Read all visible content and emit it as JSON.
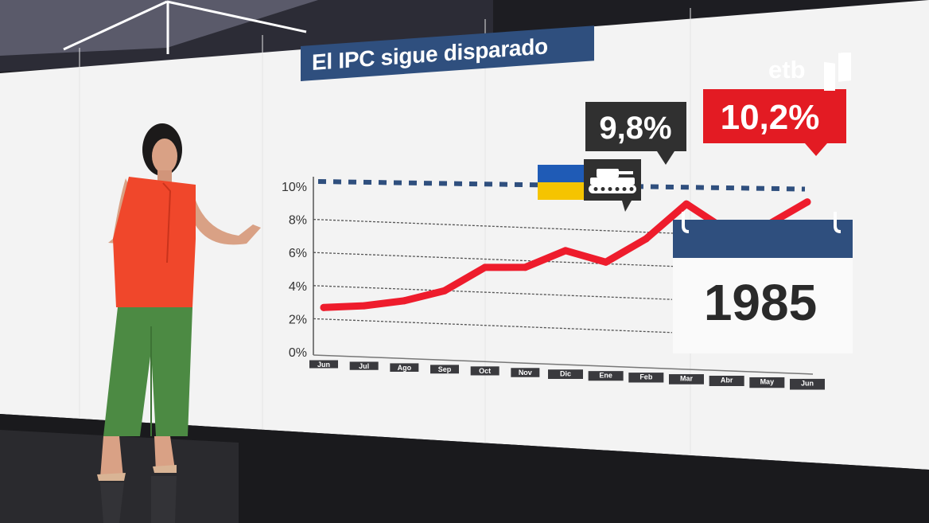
{
  "title": "El IPC sigue disparado",
  "logo": "etb",
  "calendar_year": "1985",
  "callouts": {
    "peak_label": "9,8%",
    "latest_label": "10,2%"
  },
  "icons": [
    "ukraine-flag-icon",
    "tank-icon",
    "calendar-icon"
  ],
  "colors": {
    "series": "#ee1c2c",
    "latest_callout": "#e31b23",
    "peak_callout": "#303030",
    "title_bg": "#2f4f7e",
    "calendar_header": "#2f4f7e",
    "reference_line": "#2f4f7e",
    "flag_blue": "#1f5bb6",
    "flag_yellow": "#f5c400"
  },
  "chart_data": {
    "type": "line",
    "title": "El IPC sigue disparado",
    "categories": [
      "Jun",
      "Jul",
      "Ago",
      "Sep",
      "Oct",
      "Nov",
      "Dic",
      "Ene",
      "Feb",
      "Mar",
      "Abr",
      "May",
      "Jun"
    ],
    "series": [
      {
        "values": [
          2.7,
          2.9,
          3.3,
          4.0,
          5.5,
          5.6,
          6.7,
          6.1,
          7.6,
          9.8,
          8.3,
          8.7,
          10.2
        ]
      }
    ],
    "y_ticks": [
      "0%",
      "2%",
      "4%",
      "6%",
      "8%",
      "10%"
    ],
    "ylim": [
      0,
      10.2
    ],
    "grid": true,
    "reference_line": {
      "label": "10,2%"
    },
    "annotations": [
      {
        "label": "9,8%",
        "category_index": 9
      },
      {
        "label": "10,2%",
        "category_index": 12
      }
    ]
  }
}
